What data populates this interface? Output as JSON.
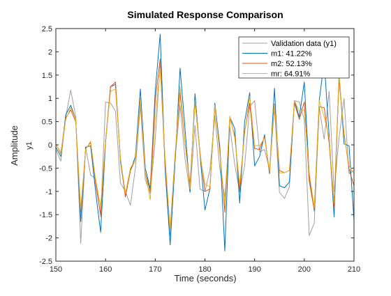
{
  "chart_data": {
    "type": "line",
    "title": "Simulated Response Comparison",
    "xlabel": "Time (seconds)",
    "ylabel": "Amplitude",
    "channel_label": "y1",
    "xlim": [
      150,
      210
    ],
    "ylim": [
      -2.5,
      2.5
    ],
    "xticks": [
      150,
      160,
      170,
      180,
      190,
      200,
      210
    ],
    "yticks": [
      -2.5,
      -2,
      -1.5,
      -1,
      -0.5,
      0,
      0.5,
      1,
      1.5,
      2,
      2.5
    ],
    "grid": false,
    "legend_position": "top-right",
    "x": [
      150,
      151,
      152,
      153,
      154,
      155,
      156,
      157,
      158,
      159,
      160,
      161,
      162,
      163,
      164,
      165,
      166,
      167,
      168,
      169,
      170,
      171,
      172,
      173,
      174,
      175,
      176,
      177,
      178,
      179,
      180,
      181,
      182,
      183,
      184,
      185,
      186,
      187,
      188,
      189,
      190,
      191,
      192,
      193,
      194,
      195,
      196,
      197,
      198,
      199,
      200,
      201,
      202,
      203,
      204,
      205,
      206,
      207,
      208,
      209,
      210
    ],
    "series": [
      {
        "name": "Validation data (y1)",
        "color": "#a0a0a0",
        "values": [
          -0.1,
          -0.35,
          0.6,
          1.18,
          0.6,
          -2.12,
          -0.05,
          -0.65,
          -0.72,
          -1.55,
          0.92,
          0.9,
          0.72,
          -0.82,
          -1.0,
          -1.3,
          -0.5,
          0.85,
          -0.75,
          -1.05,
          0.1,
          1.73,
          -0.48,
          -1.95,
          -0.3,
          0.85,
          -0.3,
          -1.02,
          0.42,
          -0.95,
          -1.0,
          -0.55,
          0.62,
          -0.52,
          -1.12,
          0.4,
          -0.42,
          -1.02,
          -0.45,
          0.82,
          0.95,
          -0.15,
          -0.1,
          -0.52,
          0.8,
          -1.02,
          -1.15,
          -0.9,
          0.95,
          0.92,
          0.55,
          -1.95,
          -1.68,
          0.82,
          0.12,
          1.15,
          -1.0,
          0.15,
          1.0,
          -0.62,
          -0.55
        ]
      },
      {
        "name": "m1: 41.22%",
        "color": "#0072bd",
        "values": [
          -0.05,
          -0.25,
          0.65,
          0.85,
          0.55,
          -1.65,
          -0.05,
          -0.02,
          -1.0,
          -1.88,
          0.05,
          1.25,
          1.3,
          -0.35,
          -1.1,
          -0.55,
          -0.25,
          1.2,
          -0.5,
          -0.95,
          1.15,
          2.38,
          -0.55,
          -2.15,
          -0.35,
          1.65,
          0.35,
          -1.02,
          1.1,
          -0.2,
          -1.4,
          -0.95,
          0.9,
          -0.05,
          -2.28,
          0.6,
          0.35,
          -1.25,
          0.5,
          1.12,
          -0.45,
          -0.25,
          0.22,
          -0.62,
          1.22,
          -0.88,
          -0.92,
          -0.8,
          0.95,
          0.6,
          1.35,
          -0.65,
          -1.42,
          0.95,
          1.8,
          0.2,
          -1.55,
          1.55,
          0.02,
          -0.02,
          -1.62
        ]
      },
      {
        "name": "m2: 52.13%",
        "color": "#d95319",
        "values": [
          0.02,
          -0.18,
          0.58,
          0.75,
          0.5,
          -1.45,
          -0.08,
          0.05,
          -0.82,
          -1.5,
          0.1,
          1.25,
          1.35,
          -0.3,
          -1.12,
          -0.55,
          -0.32,
          0.98,
          -0.6,
          -1.0,
          0.95,
          1.85,
          -0.45,
          -1.82,
          -0.22,
          1.12,
          0.02,
          -0.85,
          0.92,
          -0.15,
          -1.0,
          -0.95,
          0.82,
          -0.12,
          -1.45,
          0.58,
          0.2,
          -0.98,
          0.28,
          0.9,
          -0.08,
          -0.1,
          0.18,
          -0.6,
          0.88,
          -0.55,
          -0.6,
          -0.55,
          0.9,
          0.55,
          0.92,
          -0.78,
          -1.4,
          0.82,
          0.8,
          0.05,
          -1.32,
          1.4,
          0.25,
          -0.52,
          -0.88
        ]
      },
      {
        "name": "mr: 64.91%",
        "color": "#edb120",
        "values": [
          0.02,
          -0.2,
          0.55,
          0.8,
          0.55,
          -1.38,
          -0.1,
          0.08,
          -0.75,
          -1.32,
          0.1,
          1.15,
          1.2,
          -0.28,
          -1.05,
          -0.5,
          -0.32,
          1.0,
          -0.6,
          -1.18,
          0.55,
          1.65,
          -0.3,
          -1.85,
          -0.2,
          1.25,
          0.05,
          -0.95,
          0.95,
          -0.2,
          -0.85,
          -0.9,
          0.85,
          -0.2,
          -1.3,
          0.62,
          0.15,
          -0.85,
          0.25,
          1.05,
          -0.02,
          -0.02,
          0.15,
          -0.55,
          0.85,
          -0.6,
          -0.6,
          -0.55,
          0.95,
          0.72,
          0.75,
          -0.6,
          -1.35,
          0.95,
          0.6,
          0.15,
          -1.25,
          1.52,
          0.2,
          -0.45,
          -0.62
        ]
      }
    ]
  }
}
